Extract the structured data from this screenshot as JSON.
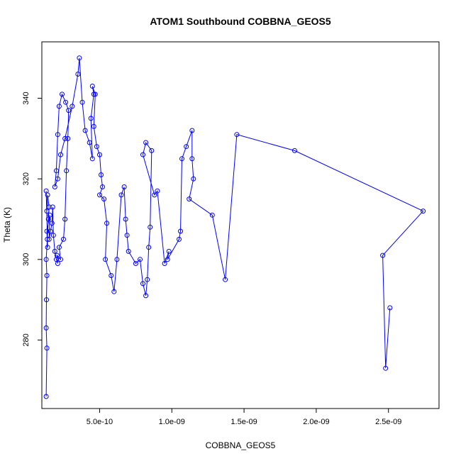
{
  "chart_data": {
    "type": "line",
    "title": "ATOM1 Southbound COBBNA_GEOS5",
    "xlabel": "COBBNA_GEOS5",
    "ylabel": "Theta (K)",
    "xlim": [
      1e-10,
      2.85e-09
    ],
    "ylim": [
      263,
      354
    ],
    "x_ticks": [
      5e-10,
      1e-09,
      1.5e-09,
      2e-09,
      2.5e-09
    ],
    "x_tick_labels": [
      "5.0e-10",
      "1.0e-09",
      "1.5e-09",
      "2.0e-09",
      "2.5e-09"
    ],
    "y_ticks": [
      280,
      300,
      320,
      340
    ],
    "y_tick_labels": [
      "280",
      "300",
      "320",
      "340"
    ],
    "grid": false,
    "legend": "none",
    "series_color": "#0000ff",
    "markers": "open-circle",
    "series": [
      {
        "x": [
          1.3e-10,
          1.35e-10,
          1.3e-10,
          1.32e-10,
          1.35e-10,
          1.3e-10,
          1.38e-10,
          1.45e-10,
          1.5e-10,
          1.4e-10,
          1.35e-10,
          1.3e-10,
          1.4e-10,
          1.35e-10,
          1.55e-10,
          1.5e-10,
          1.6e-10,
          1.7e-10,
          1.75e-10,
          1.8e-10,
          1.9e-10,
          2e-10,
          2.1e-10,
          2.05e-10,
          2.3e-10,
          2.2e-10,
          2.5e-10,
          2.6e-10,
          2.7e-10,
          2.8e-10,
          2.85e-10,
          2.65e-10,
          2.4e-10,
          2.2e-10,
          2.1e-10,
          2e-10,
          1.9e-10,
          2.1e-10,
          2.3e-10,
          2.6e-10,
          3.1e-10,
          3.5e-10,
          3.6e-10,
          3.8e-10,
          4e-10,
          4.3e-10,
          4.5e-10,
          4.4e-10,
          4.6e-10,
          4.5e-10,
          4.7e-10,
          4.6e-10,
          4.8e-10,
          5e-10,
          5.1e-10,
          5.2e-10,
          5e-10,
          5.3e-10,
          5.5e-10,
          5.4e-10,
          5.8e-10,
          6e-10,
          6.2e-10,
          6.5e-10,
          6.7e-10,
          6.8e-10,
          6.9e-10,
          7e-10,
          7.5e-10,
          7.8e-10,
          8e-10,
          8.2e-10,
          8.3e-10,
          8.4e-10,
          8.5e-10,
          8.6e-10,
          8.2e-10,
          8e-10,
          8.8e-10,
          9e-10,
          9.5e-10,
          9.8e-10,
          9.7e-10,
          1.05e-09,
          1.06e-09,
          1.07e-09,
          1.1e-09,
          1.14e-09,
          1.14e-09,
          1.15e-09,
          1.12e-09,
          1.28e-09,
          1.37e-09,
          1.45e-09,
          1.85e-09,
          2.74e-09,
          2.46e-09,
          2.48e-09,
          2.51e-09
        ],
        "y": [
          266,
          278,
          283,
          290,
          296,
          300,
          305,
          310,
          313,
          316,
          312,
          317,
          303,
          307,
          311,
          305,
          307,
          309,
          313,
          306,
          302,
          300,
          299,
          301,
          300,
          303,
          305,
          310,
          322,
          330,
          337,
          339,
          341,
          338,
          331,
          322,
          318,
          320,
          326,
          330,
          338,
          346,
          350,
          339,
          332,
          329,
          325,
          335,
          341,
          343,
          341,
          333,
          328,
          326,
          321,
          318,
          316,
          315,
          309,
          300,
          296,
          292,
          300,
          316,
          318,
          310,
          306,
          302,
          299,
          300,
          294,
          291,
          295,
          303,
          308,
          327,
          329,
          326,
          316,
          317,
          299,
          302,
          300,
          305,
          307,
          325,
          328,
          332,
          325,
          320,
          315,
          311,
          295,
          331,
          327,
          312,
          301,
          273,
          288
        ],
        "values_note": ""
      }
    ]
  }
}
